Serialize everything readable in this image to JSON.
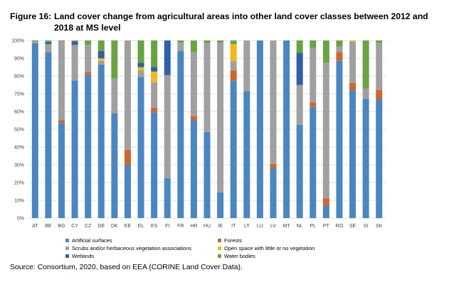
{
  "title": {
    "label": "Figure 16:",
    "text": "Land cover change from agricultural areas into other land cover classes between 2012 and 2018 at MS level"
  },
  "source": "Source: Consortium, 2020, based on EEA (CORINE Land Cover Data).",
  "chart_data": {
    "type": "bar",
    "stacked": true,
    "categories": [
      "AT",
      "BE",
      "BG",
      "CY",
      "CZ",
      "DE",
      "DK",
      "EE",
      "EL",
      "ES",
      "FI",
      "FR",
      "HR",
      "HU",
      "IE",
      "IT",
      "LT",
      "LU",
      "LV",
      "MT",
      "NL",
      "PL",
      "PT",
      "RO",
      "SE",
      "SI",
      "SK"
    ],
    "ylim": [
      0,
      100
    ],
    "yticks": [
      "0%",
      "10%",
      "20%",
      "30%",
      "40%",
      "50%",
      "60%",
      "70%",
      "80%",
      "90%",
      "100%"
    ],
    "grid": true,
    "legend_position": "bottom",
    "series": [
      {
        "name": "Artificial surfaces",
        "color": "#4a86c1",
        "values": [
          98.5,
          93.5,
          53.5,
          77.5,
          80.5,
          86.5,
          59,
          30,
          79.5,
          59.5,
          22.5,
          94,
          55,
          48.5,
          14.5,
          77.5,
          71.5,
          100,
          28,
          100,
          52.5,
          62.5,
          7,
          88.5,
          72,
          67,
          67
        ]
      },
      {
        "name": "Forests",
        "color": "#d1652e",
        "values": [
          0,
          0,
          1.5,
          0,
          1.5,
          0,
          0,
          8.5,
          0,
          2.5,
          0,
          0,
          2.5,
          0,
          0,
          5.5,
          0,
          0,
          2.5,
          0,
          0,
          2.5,
          4,
          5,
          4,
          0,
          5
        ]
      },
      {
        "name": "Scrubs and/or herbaceous vegetation associations",
        "color": "#a0a0a0",
        "values": [
          1,
          4.5,
          44.5,
          20,
          15.5,
          2,
          19.5,
          61.5,
          3.5,
          14.5,
          58,
          5,
          36,
          50,
          84.5,
          5.5,
          28.5,
          0,
          69.5,
          0,
          22.5,
          31,
          76.5,
          3,
          23.5,
          6,
          26.5
        ]
      },
      {
        "name": "Open space with little or no vegetation",
        "color": "#f0b81a",
        "values": [
          0,
          0,
          0,
          0,
          0,
          1.5,
          0,
          0,
          2,
          6,
          0,
          0,
          0,
          0,
          0,
          9.5,
          0,
          0,
          0,
          0,
          0,
          0,
          0,
          0,
          0.5,
          0,
          0
        ]
      },
      {
        "name": "Wetlands",
        "color": "#2f5fa8",
        "values": [
          0,
          1,
          0,
          2,
          0,
          4,
          0,
          0,
          2.5,
          2.5,
          19.5,
          0,
          0,
          0,
          0,
          0,
          0,
          0,
          0,
          0,
          18,
          0,
          0,
          0,
          0,
          0,
          0
        ]
      },
      {
        "name": "Water bodies",
        "color": "#6aa343",
        "values": [
          0.5,
          1,
          0.5,
          0.5,
          2.5,
          6,
          21.5,
          0,
          12.5,
          15,
          0,
          1,
          6.5,
          1.5,
          1,
          2,
          0,
          0,
          0,
          0,
          7,
          4,
          12.5,
          3.5,
          0,
          27,
          1.5
        ]
      }
    ]
  }
}
